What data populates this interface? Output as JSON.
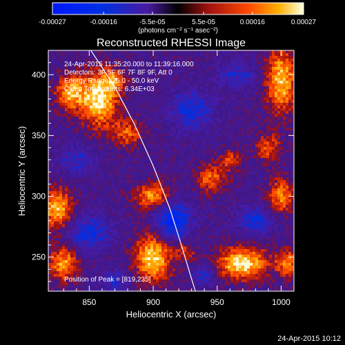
{
  "chart_data": {
    "type": "heatmap",
    "title": "Reconstructed RHESSI Image",
    "xlabel": "Heliocentric X (arcsec)",
    "ylabel": "Heliocentric Y (arcsec)",
    "xlim": [
      818,
      1010
    ],
    "ylim": [
      222,
      420
    ],
    "x_ticks": [
      850,
      900,
      950,
      1000
    ],
    "y_ticks": [
      250,
      300,
      350,
      400
    ],
    "x_tick_labels": [
      "850",
      "900",
      "950",
      "1000"
    ],
    "y_tick_labels": [
      "250",
      "300",
      "350",
      "400"
    ],
    "colorbar": {
      "range": [
        -0.00027,
        0.00027
      ],
      "tick_values": [
        -0.00027,
        -0.00016,
        -5.5e-05,
        5.5e-05,
        0.00016,
        0.00027
      ],
      "tick_labels": [
        "-0.00027",
        "-0.00016",
        "-5.5e-05",
        "5.5e-05",
        "0.00016",
        "0.00027"
      ],
      "units": "(photons cm⁻² s⁻¹ asec⁻²)"
    },
    "annotations": {
      "time_range": "24-Apr-2015 11:35:20.000 to 11:39:16.000",
      "detectors": "Detectors: 3F 5F 6F 7F 8F 9F, Att 0",
      "energy": "Energy Range: 25.0 - 50.0 keV",
      "clean": "Clean    Total counts: 6.34E+03",
      "peak": "Position of Peak = [819,235]"
    },
    "sources": [
      {
        "x": 858,
        "y": 380,
        "sx": 10,
        "sy": 16,
        "amp": 1.0
      },
      {
        "x": 835,
        "y": 385,
        "sx": 8,
        "sy": 10,
        "amp": 0.8
      },
      {
        "x": 880,
        "y": 352,
        "sx": 8,
        "sy": 8,
        "amp": 0.55
      },
      {
        "x": 1000,
        "y": 395,
        "sx": 8,
        "sy": 18,
        "amp": 0.9
      },
      {
        "x": 990,
        "y": 340,
        "sx": 7,
        "sy": 8,
        "amp": 0.55
      },
      {
        "x": 945,
        "y": 315,
        "sx": 8,
        "sy": 8,
        "amp": 0.6
      },
      {
        "x": 900,
        "y": 300,
        "sx": 10,
        "sy": 8,
        "amp": 0.75
      },
      {
        "x": 1000,
        "y": 300,
        "sx": 7,
        "sy": 10,
        "amp": 0.7
      },
      {
        "x": 825,
        "y": 290,
        "sx": 8,
        "sy": 12,
        "amp": 0.85
      },
      {
        "x": 830,
        "y": 245,
        "sx": 8,
        "sy": 10,
        "amp": 0.75
      },
      {
        "x": 900,
        "y": 250,
        "sx": 10,
        "sy": 14,
        "amp": 0.95
      },
      {
        "x": 970,
        "y": 245,
        "sx": 14,
        "sy": 9,
        "amp": 1.0
      },
      {
        "x": 1005,
        "y": 245,
        "sx": 6,
        "sy": 8,
        "amp": 0.65
      },
      {
        "x": 960,
        "y": 330,
        "sx": 6,
        "sy": 6,
        "amp": 0.45
      },
      {
        "x": 870,
        "y": 395,
        "sx": 6,
        "sy": 6,
        "amp": 0.5
      },
      {
        "x": 925,
        "y": 255,
        "sx": 6,
        "sy": 6,
        "amp": 0.45
      }
    ],
    "negative_regions": [
      {
        "x": 915,
        "y": 280,
        "sx": 10,
        "sy": 12,
        "amp": 0.8
      },
      {
        "x": 930,
        "y": 370,
        "sx": 12,
        "sy": 12,
        "amp": 0.55
      },
      {
        "x": 850,
        "y": 270,
        "sx": 12,
        "sy": 10,
        "amp": 0.6
      },
      {
        "x": 980,
        "y": 280,
        "sx": 10,
        "sy": 8,
        "amp": 0.55
      },
      {
        "x": 840,
        "y": 330,
        "sx": 10,
        "sy": 8,
        "amp": 0.45
      },
      {
        "x": 965,
        "y": 400,
        "sx": 10,
        "sy": 8,
        "amp": 0.45
      },
      {
        "x": 940,
        "y": 235,
        "sx": 6,
        "sy": 6,
        "amp": 0.5
      },
      {
        "x": 870,
        "y": 230,
        "sx": 8,
        "sy": 6,
        "amp": 0.45
      }
    ],
    "limb_curve": [
      [
        850,
        422
      ],
      [
        870,
        390
      ],
      [
        885,
        360
      ],
      [
        900,
        325
      ],
      [
        913,
        290
      ],
      [
        922,
        260
      ],
      [
        930,
        232
      ],
      [
        933,
        222
      ]
    ]
  },
  "footer": {
    "timestamp": "24-Apr-2015 10:12"
  }
}
